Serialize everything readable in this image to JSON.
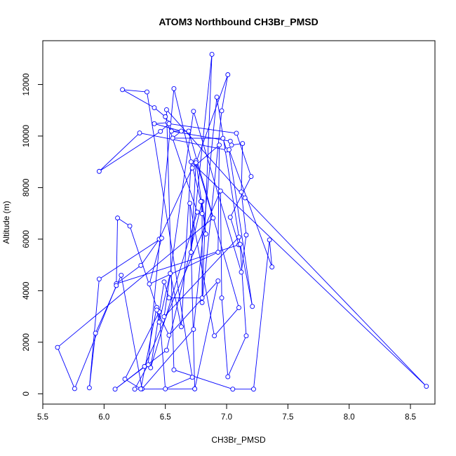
{
  "chart_data": {
    "type": "line",
    "title": "ATOM3 Northbound CH3Br_PMSD",
    "xlabel": "CH3Br_PMSD",
    "ylabel": "Altitude (m)",
    "xlim": [
      5.5,
      8.7
    ],
    "ylim": [
      -400,
      13700
    ],
    "xticks": [
      5.5,
      6.0,
      6.5,
      7.0,
      7.5,
      8.0,
      8.5
    ],
    "xtick_labels": [
      "5.5",
      "6.0",
      "6.5",
      "7.0",
      "7.5",
      "8.0",
      "8.5"
    ],
    "yticks": [
      0,
      2000,
      4000,
      6000,
      8000,
      10000,
      12000
    ],
    "ytick_labels": [
      "0",
      "2000",
      "4000",
      "6000",
      "8000",
      "10000",
      "12000"
    ],
    "grid": false,
    "series": [
      {
        "color": "#0000ff",
        "marker": "open-circle",
        "points": [
          [
            6.52,
            10520
          ],
          [
            6.41,
            10480
          ],
          [
            6.63,
            10190
          ],
          [
            6.56,
            9920
          ],
          [
            6.97,
            9910
          ],
          [
            7.0,
            9460
          ],
          [
            6.29,
            10120
          ],
          [
            5.96,
            8630
          ],
          [
            6.46,
            10180
          ],
          [
            6.53,
            10480
          ],
          [
            7.08,
            10110
          ],
          [
            7.2,
            8430
          ],
          [
            7.03,
            6850
          ],
          [
            7.1,
            5780
          ],
          [
            6.1,
            4270
          ],
          [
            6.3,
            4980
          ],
          [
            6.45,
            6000
          ],
          [
            6.72,
            8760
          ],
          [
            6.94,
            9650
          ],
          [
            6.93,
            5490
          ],
          [
            6.37,
            4260
          ],
          [
            6.47,
            6040
          ],
          [
            5.96,
            4450
          ],
          [
            5.88,
            230
          ],
          [
            5.93,
            2350
          ],
          [
            6.14,
            4600
          ],
          [
            6.31,
            190
          ],
          [
            6.73,
            2500
          ],
          [
            6.92,
            11510
          ],
          [
            7.11,
            5800
          ],
          [
            7.16,
            2250
          ],
          [
            7.01,
            660
          ],
          [
            6.96,
            3720
          ],
          [
            6.95,
            7870
          ],
          [
            6.33,
            1060
          ],
          [
            6.09,
            180
          ],
          [
            6.51,
            1690
          ],
          [
            6.8,
            7460
          ],
          [
            6.83,
            6200
          ],
          [
            6.75,
            9040
          ],
          [
            6.89,
            6820
          ],
          [
            5.62,
            1800
          ],
          [
            5.76,
            200
          ],
          [
            6.1,
            4200
          ],
          [
            6.11,
            6820
          ],
          [
            6.21,
            6510
          ],
          [
            6.43,
            3350
          ],
          [
            6.3,
            190
          ],
          [
            6.17,
            570
          ],
          [
            6.45,
            3180
          ],
          [
            6.5,
            190
          ],
          [
            6.72,
            640
          ],
          [
            6.35,
            11710
          ],
          [
            6.15,
            11800
          ],
          [
            6.41,
            11100
          ],
          [
            6.5,
            10750
          ],
          [
            6.76,
            7050
          ],
          [
            6.38,
            1010
          ],
          [
            6.49,
            4340
          ],
          [
            6.53,
            3720
          ],
          [
            6.8,
            3720
          ],
          [
            6.88,
            13170
          ],
          [
            6.71,
            5490
          ],
          [
            6.75,
            8970
          ],
          [
            7.01,
            12380
          ],
          [
            6.96,
            10980
          ],
          [
            6.8,
            3540
          ],
          [
            6.8,
            6990
          ],
          [
            6.79,
            7460
          ],
          [
            6.57,
            11840
          ],
          [
            6.36,
            1130
          ],
          [
            6.25,
            180
          ],
          [
            6.74,
            190
          ],
          [
            6.7,
            7390
          ],
          [
            6.9,
            2250
          ],
          [
            7.1,
            3340
          ],
          [
            6.69,
            10190
          ],
          [
            6.55,
            10190
          ],
          [
            7.03,
            9800
          ],
          [
            7.04,
            9650
          ],
          [
            7.13,
            9710
          ],
          [
            7.12,
            7830
          ],
          [
            7.16,
            6160
          ],
          [
            7.12,
            4720
          ],
          [
            6.73,
            10960
          ],
          [
            6.49,
            2990
          ],
          [
            7.1,
            6080
          ],
          [
            7.21,
            3390
          ],
          [
            7.02,
            9470
          ],
          [
            7.37,
            4920
          ],
          [
            7.35,
            5970
          ],
          [
            7.22,
            180
          ],
          [
            7.05,
            180
          ],
          [
            6.57,
            930
          ],
          [
            6.51,
            11020
          ],
          [
            7.15,
            7600
          ],
          [
            8.63,
            290
          ],
          [
            6.71,
            9000
          ],
          [
            6.63,
            2600
          ],
          [
            6.54,
            4670
          ],
          [
            6.45,
            2780
          ],
          [
            6.43,
            3250
          ],
          [
            6.53,
            2270
          ],
          [
            6.93,
            4380
          ],
          [
            6.74,
            190
          ]
        ]
      }
    ]
  }
}
